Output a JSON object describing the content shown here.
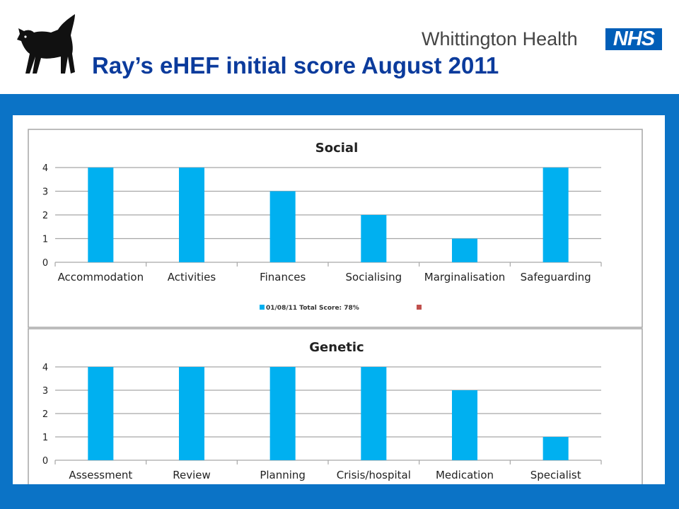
{
  "header": {
    "title": "Ray’s eHEF initial score August 2011",
    "org_name": "Whittington Health",
    "nhs_logo": "NHS",
    "logo_icon": "black-cat-icon"
  },
  "colors": {
    "title": "#0b3b9c",
    "band": "#0b73c6",
    "bar": "#00b0f0",
    "legend_second": "#c0504d",
    "nhs": "#005eb8"
  },
  "chart_data": [
    {
      "type": "bar",
      "title": "Social",
      "categories": [
        "Accommodation",
        "Activities",
        "Finances",
        "Socialising",
        "Marginalisation",
        "Safeguarding"
      ],
      "series": [
        {
          "name": "01/08/11 Total Score: 78%",
          "values": [
            4,
            4,
            3,
            2,
            1,
            4
          ]
        }
      ],
      "legend_second_entry": "",
      "ylim": [
        0,
        4
      ],
      "yticks": [
        0,
        1,
        2,
        3,
        4
      ],
      "grid": true,
      "legend": "bottom"
    },
    {
      "type": "bar",
      "title": "Genetic",
      "categories": [
        "Assessment",
        "Review",
        "Planning",
        "Crisis/hospital",
        "Medication",
        "Specialist"
      ],
      "series": [
        {
          "values": [
            4,
            4,
            4,
            4,
            3,
            1
          ]
        }
      ],
      "ylim": [
        0,
        4
      ],
      "yticks": [
        0,
        1,
        2,
        3,
        4
      ],
      "grid": true
    }
  ]
}
